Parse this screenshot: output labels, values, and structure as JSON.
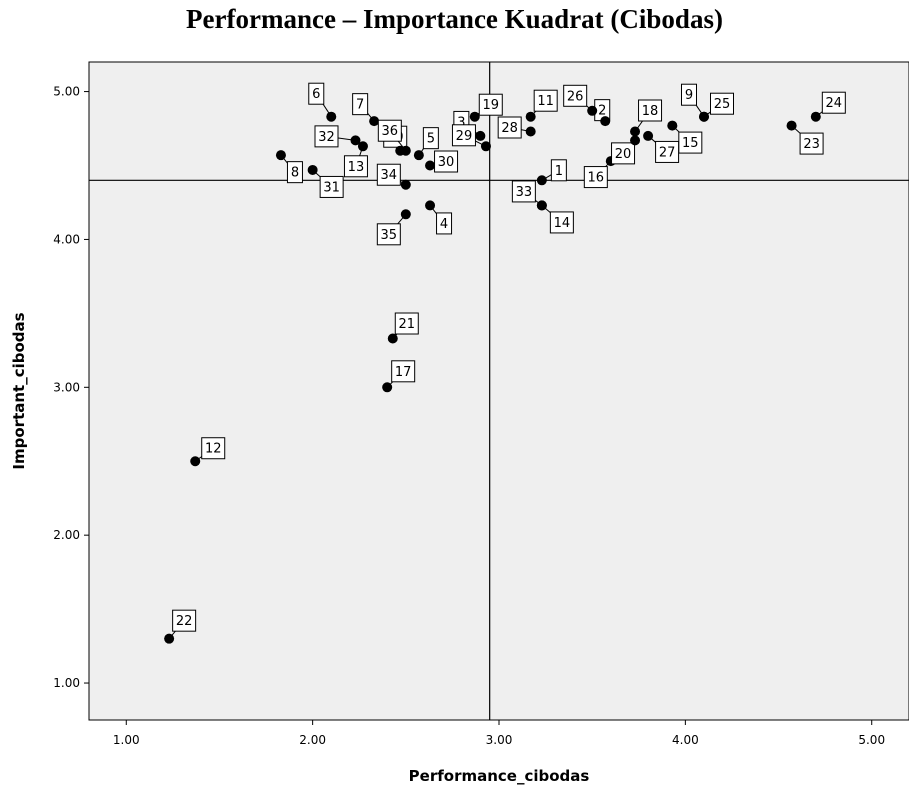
{
  "chart_data": {
    "type": "scatter",
    "title": "Performance – Importance Kuadrat (Cibodas)",
    "xlabel": "Performance_cibodas",
    "ylabel": "Important_cibodas",
    "xlim": [
      0.8,
      5.2
    ],
    "ylim": [
      0.75,
      5.2
    ],
    "xticks": [
      1.0,
      2.0,
      3.0,
      4.0,
      5.0
    ],
    "xtick_labels": [
      "1.00",
      "2.00",
      "3.00",
      "4.00",
      "5.00"
    ],
    "yticks": [
      1.0,
      2.0,
      3.0,
      4.0,
      5.0
    ],
    "ytick_labels": [
      "1.00",
      "2.00",
      "3.00",
      "4.00",
      "5.00"
    ],
    "grid": false,
    "reference_lines": {
      "x": 2.95,
      "y": 4.4
    },
    "colors": {
      "background": "#efefef",
      "point": "#000000",
      "line": "#000000"
    },
    "points": [
      {
        "label": "1",
        "x": 3.23,
        "y": 4.4
      },
      {
        "label": "2",
        "x": 3.57,
        "y": 4.8
      },
      {
        "label": "3",
        "x": 2.9,
        "y": 4.7
      },
      {
        "label": "4",
        "x": 2.63,
        "y": 4.23
      },
      {
        "label": "5",
        "x": 2.57,
        "y": 4.57
      },
      {
        "label": "6",
        "x": 2.1,
        "y": 4.83
      },
      {
        "label": "7",
        "x": 2.33,
        "y": 4.8
      },
      {
        "label": "8",
        "x": 1.83,
        "y": 4.57
      },
      {
        "label": "9",
        "x": 4.1,
        "y": 4.83
      },
      {
        "label": "10",
        "x": 2.47,
        "y": 4.6
      },
      {
        "label": "11",
        "x": 3.17,
        "y": 4.83
      },
      {
        "label": "12",
        "x": 1.37,
        "y": 2.5
      },
      {
        "label": "13",
        "x": 2.27,
        "y": 4.63
      },
      {
        "label": "14",
        "x": 3.23,
        "y": 4.23
      },
      {
        "label": "15",
        "x": 3.93,
        "y": 4.77
      },
      {
        "label": "16",
        "x": 3.6,
        "y": 4.53
      },
      {
        "label": "17",
        "x": 2.4,
        "y": 3.0
      },
      {
        "label": "18",
        "x": 3.73,
        "y": 4.73
      },
      {
        "label": "19",
        "x": 2.87,
        "y": 4.83
      },
      {
        "label": "20",
        "x": 3.73,
        "y": 4.67
      },
      {
        "label": "21",
        "x": 2.43,
        "y": 3.33
      },
      {
        "label": "22",
        "x": 1.23,
        "y": 1.3
      },
      {
        "label": "23",
        "x": 4.57,
        "y": 4.77
      },
      {
        "label": "24",
        "x": 4.7,
        "y": 4.83
      },
      {
        "label": "25",
        "x": 4.1,
        "y": 4.83
      },
      {
        "label": "26",
        "x": 3.5,
        "y": 4.87
      },
      {
        "label": "27",
        "x": 3.8,
        "y": 4.7
      },
      {
        "label": "28",
        "x": 3.17,
        "y": 4.73
      },
      {
        "label": "29",
        "x": 2.93,
        "y": 4.63
      },
      {
        "label": "30",
        "x": 2.63,
        "y": 4.5
      },
      {
        "label": "31",
        "x": 2.0,
        "y": 4.47
      },
      {
        "label": "32",
        "x": 2.23,
        "y": 4.67
      },
      {
        "label": "33",
        "x": 3.23,
        "y": 4.23
      },
      {
        "label": "34",
        "x": 2.5,
        "y": 4.37
      },
      {
        "label": "35",
        "x": 2.5,
        "y": 4.17
      },
      {
        "label": "36",
        "x": 2.5,
        "y": 4.6
      }
    ]
  }
}
